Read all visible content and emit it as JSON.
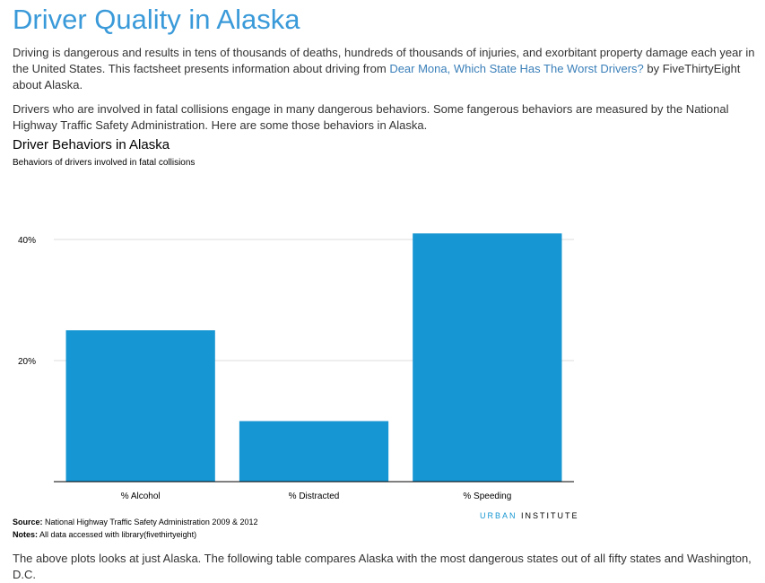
{
  "page": {
    "title": "Driver Quality in Alaska",
    "intro": {
      "text_before_link": "Driving is dangerous and results in tens of thousands of deaths, hundreds of thousands of injuries, and exorbitant property damage each year in the United States. This factsheet presents information about driving from ",
      "link_text": "Dear Mona, Which State Has The Worst Drivers?",
      "text_after_link": " by FiveThirtyEight about Alaska."
    },
    "behaviors_paragraph": "Drivers who are involved in fatal collisions engage in many dangerous behaviors. Some fangerous behaviors are measured by the National Highway Traffic Safety Administration. Here are some those behaviors in Alaska.",
    "closing_paragraph": "The above plots looks at just Alaska. The following table compares Alaska with the most dangerous states out of all fifty states and Washington, D.C."
  },
  "chart_data": {
    "type": "bar",
    "title": "Driver Behaviors in Alaska",
    "subtitle": "Behaviors of drivers involved in fatal collisions",
    "categories": [
      "% Alcohol",
      "% Distracted",
      "% Speeding"
    ],
    "values": [
      25,
      10,
      41
    ],
    "y_tick_values": [
      20,
      40
    ],
    "y_tick_labels": [
      "20%",
      "40%"
    ],
    "ylim": [
      0,
      44
    ],
    "grid": "horizontal",
    "bar_color": "#1696d2",
    "source_label": "Source:",
    "source_text": " National Highway Traffic Safety Administration 2009 & 2012",
    "notes_label": "Notes:",
    "notes_text": " All data accessed with library(fivethirtyeight)"
  },
  "branding": {
    "urban": "URBAN",
    "institute": " INSTITUTE"
  },
  "colors": {
    "title": "#3a9ad9",
    "link": "#3a7fb9",
    "bar": "#1696d2"
  }
}
